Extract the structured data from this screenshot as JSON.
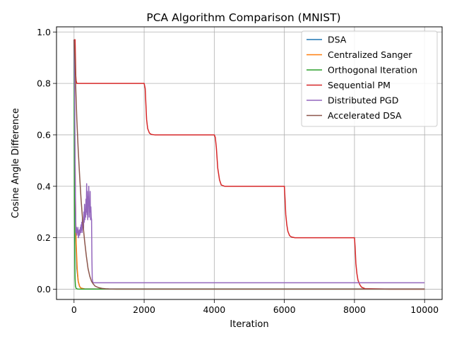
{
  "chart_data": {
    "type": "line",
    "title": "PCA Algorithm Comparison (MNIST)",
    "xlabel": "Iteration",
    "ylabel": "Cosine Angle Difference",
    "xlim": [
      -500,
      10500
    ],
    "ylim": [
      -0.04,
      1.02
    ],
    "xticks": [
      0,
      2000,
      4000,
      6000,
      8000,
      10000
    ],
    "yticks": [
      0.0,
      0.2,
      0.4,
      0.6,
      0.8,
      1.0
    ],
    "xtick_labels": [
      "0",
      "2000",
      "4000",
      "6000",
      "8000",
      "10000"
    ],
    "ytick_labels": [
      "0.0",
      "0.2",
      "0.4",
      "0.6",
      "0.8",
      "1.0"
    ],
    "grid": true,
    "legend_position": "upper-right",
    "series": [
      {
        "name": "DSA",
        "color": "#1f77b4",
        "x": [
          0,
          10,
          25,
          50,
          80,
          120,
          160,
          200,
          300,
          500,
          1000,
          2000,
          4000,
          6000,
          8000,
          10000
        ],
        "y": [
          0.97,
          0.75,
          0.45,
          0.2,
          0.08,
          0.03,
          0.01,
          0.004,
          0.001,
          0.0008,
          0.0008,
          0.0008,
          0.0008,
          0.0008,
          0.0008,
          0.0008
        ]
      },
      {
        "name": "Centralized Sanger",
        "color": "#ff7f0e",
        "x": [
          0,
          10,
          20,
          40,
          60,
          90,
          120,
          160,
          200,
          300,
          500,
          1000,
          2000,
          4000,
          6000,
          8000,
          10000
        ],
        "y": [
          0.97,
          0.8,
          0.6,
          0.35,
          0.18,
          0.08,
          0.03,
          0.01,
          0.004,
          0.001,
          0.0005,
          0.0005,
          0.0005,
          0.0005,
          0.0005,
          0.0005,
          0.0005
        ]
      },
      {
        "name": "Orthogonal Iteration",
        "color": "#2ca02c",
        "x": [
          0,
          5,
          10,
          20,
          30,
          40,
          60,
          100,
          200,
          1000,
          4000,
          10000
        ],
        "y": [
          0.97,
          0.6,
          0.35,
          0.12,
          0.04,
          0.012,
          0.003,
          0.0005,
          0.0,
          0.0,
          0.0,
          0.0
        ]
      },
      {
        "name": "Sequential PM",
        "color": "#d62728",
        "x": [
          0,
          30,
          40,
          50,
          60,
          80,
          100,
          200,
          1000,
          2000,
          2030,
          2050,
          2070,
          2100,
          2150,
          2200,
          2300,
          3000,
          4000,
          4030,
          4060,
          4100,
          4150,
          4200,
          4300,
          5000,
          6000,
          6020,
          6040,
          6070,
          6100,
          6150,
          6200,
          6300,
          7000,
          8000,
          8020,
          8040,
          8070,
          8100,
          8150,
          8200,
          8300,
          9000,
          10000
        ],
        "y": [
          0.97,
          0.97,
          0.9,
          0.83,
          0.81,
          0.8,
          0.8,
          0.8,
          0.8,
          0.8,
          0.78,
          0.72,
          0.66,
          0.625,
          0.607,
          0.602,
          0.6,
          0.6,
          0.6,
          0.59,
          0.55,
          0.47,
          0.425,
          0.405,
          0.4,
          0.4,
          0.4,
          0.35,
          0.29,
          0.25,
          0.225,
          0.208,
          0.203,
          0.2,
          0.2,
          0.2,
          0.16,
          0.1,
          0.06,
          0.035,
          0.018,
          0.008,
          0.002,
          0.0,
          0.0
        ]
      },
      {
        "name": "Distributed PGD",
        "color": "#9467bd",
        "x": [
          0,
          10,
          20,
          30,
          40,
          50,
          60,
          70,
          80,
          90,
          100,
          110,
          120,
          130,
          140,
          150,
          160,
          170,
          180,
          190,
          200,
          210,
          220,
          230,
          240,
          250,
          260,
          270,
          280,
          290,
          300,
          310,
          320,
          330,
          340,
          350,
          360,
          370,
          380,
          390,
          400,
          410,
          420,
          430,
          440,
          450,
          460,
          470,
          480,
          490,
          500,
          510,
          520,
          540,
          600,
          1000,
          2000,
          4000,
          6000,
          8000,
          10000
        ],
        "y": [
          0.97,
          0.85,
          0.7,
          0.5,
          0.35,
          0.25,
          0.22,
          0.24,
          0.21,
          0.23,
          0.22,
          0.24,
          0.21,
          0.2,
          0.22,
          0.23,
          0.21,
          0.22,
          0.24,
          0.22,
          0.25,
          0.23,
          0.26,
          0.22,
          0.28,
          0.24,
          0.25,
          0.23,
          0.3,
          0.26,
          0.33,
          0.27,
          0.31,
          0.28,
          0.35,
          0.3,
          0.41,
          0.29,
          0.38,
          0.27,
          0.36,
          0.33,
          0.4,
          0.28,
          0.34,
          0.3,
          0.38,
          0.27,
          0.32,
          0.28,
          0.27,
          0.12,
          0.04,
          0.025,
          0.025,
          0.025,
          0.025,
          0.025,
          0.025,
          0.025,
          0.025
        ]
      },
      {
        "name": "Accelerated DSA",
        "color": "#8c564b",
        "x": [
          0,
          30,
          50,
          80,
          120,
          160,
          200,
          250,
          300,
          350,
          400,
          450,
          500,
          550,
          600,
          700,
          800,
          900,
          1000,
          1200,
          2000,
          4000,
          6000,
          8000,
          10000
        ],
        "y": [
          0.97,
          0.88,
          0.78,
          0.66,
          0.54,
          0.44,
          0.35,
          0.26,
          0.19,
          0.13,
          0.08,
          0.05,
          0.03,
          0.02,
          0.012,
          0.006,
          0.003,
          0.0015,
          0.0008,
          0.0003,
          0.0,
          0.0,
          0.0,
          0.0,
          0.0
        ]
      }
    ]
  }
}
